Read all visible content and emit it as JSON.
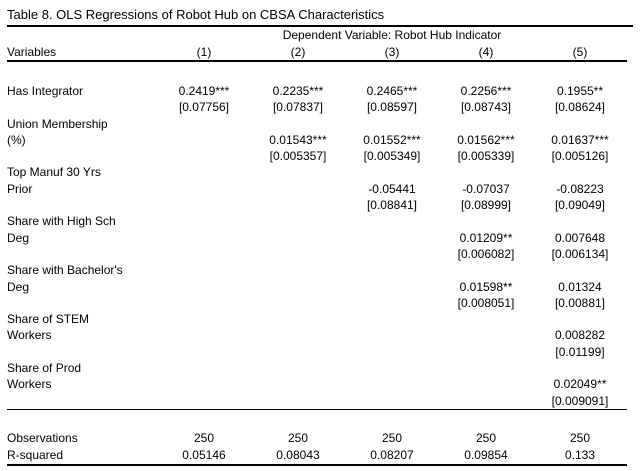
{
  "title": "Table 8. OLS Regressions of Robot Hub on CBSA Characteristics",
  "header": {
    "dependent_variable_label": "Dependent Variable: Robot Hub Indicator",
    "variables_label": "Variables",
    "columns": [
      "(1)",
      "(2)",
      "(3)",
      "(4)",
      "(5)"
    ]
  },
  "regressors": [
    {
      "label_lines": [
        "Has Integrator"
      ],
      "coefficients": [
        "0.2419***",
        "0.2235***",
        "0.2465***",
        "0.2256***",
        "0.1955**"
      ],
      "standard_errors": [
        "[0.07756]",
        "[0.07837]",
        "[0.08597]",
        "[0.08743]",
        "[0.08624]"
      ]
    },
    {
      "label_lines": [
        "Union Membership",
        "(%)"
      ],
      "coefficients": [
        "",
        "0.01543***",
        "0.01552***",
        "0.01562***",
        "0.01637***"
      ],
      "standard_errors": [
        "",
        "[0.005357]",
        "[0.005349]",
        "[0.005339]",
        "[0.005126]"
      ]
    },
    {
      "label_lines": [
        "Top Manuf 30 Yrs",
        "Prior"
      ],
      "coefficients": [
        "",
        "",
        "-0.05441",
        "-0.07037",
        "-0.08223"
      ],
      "standard_errors": [
        "",
        "",
        "[0.08841]",
        "[0.08999]",
        "[0.09049]"
      ]
    },
    {
      "label_lines": [
        "Share with High Sch",
        "Deg"
      ],
      "coefficients": [
        "",
        "",
        "",
        "0.01209**",
        "0.007648"
      ],
      "standard_errors": [
        "",
        "",
        "",
        "[0.006082]",
        "[0.006134]"
      ]
    },
    {
      "label_lines": [
        "Share with Bachelor's",
        "Deg"
      ],
      "coefficients": [
        "",
        "",
        "",
        "0.01598**",
        "0.01324"
      ],
      "standard_errors": [
        "",
        "",
        "",
        "[0.008051]",
        "[0.00881]"
      ]
    },
    {
      "label_lines": [
        "Share of STEM",
        "Workers"
      ],
      "coefficients": [
        "",
        "",
        "",
        "",
        "0.008282"
      ],
      "standard_errors": [
        "",
        "",
        "",
        "",
        "[0.01199]"
      ]
    },
    {
      "label_lines": [
        "Share of Prod",
        "Workers"
      ],
      "coefficients": [
        "",
        "",
        "",
        "",
        "0.02049**"
      ],
      "standard_errors": [
        "",
        "",
        "",
        "",
        "[0.009091]"
      ]
    }
  ],
  "stats": [
    {
      "label": "Observations",
      "values": [
        "250",
        "250",
        "250",
        "250",
        "250"
      ]
    },
    {
      "label": "R-squared",
      "values": [
        "0.05146",
        "0.08043",
        "0.08207",
        "0.09854",
        "0.133"
      ]
    }
  ],
  "colors": {
    "text": "#000000",
    "background": "#ffffff",
    "rule": "#000000"
  }
}
